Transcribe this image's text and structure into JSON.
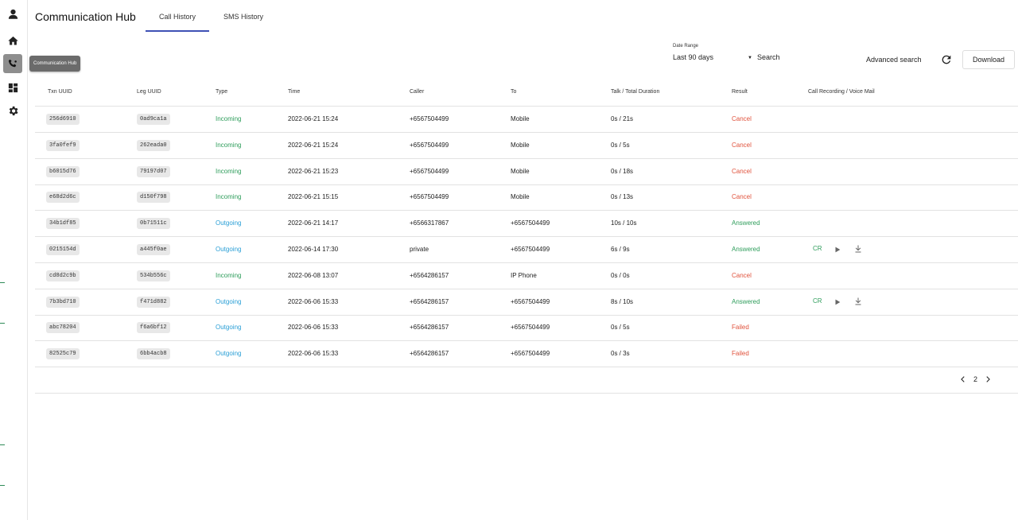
{
  "app": {
    "title": "Communication Hub"
  },
  "tabs": [
    {
      "label": "Call History",
      "active": true
    },
    {
      "label": "SMS History",
      "active": false
    }
  ],
  "sidebar": {
    "tooltip": "Communication Hub",
    "icons": [
      "person-icon",
      "home-icon",
      "communication-hub-icon",
      "dashboard-icon",
      "settings-icon"
    ]
  },
  "filters": {
    "date_range_label": "Date Range",
    "date_range_value": "Last 90 days",
    "search_label": "Search",
    "advanced_search_label": "Advanced search",
    "download_label": "Download"
  },
  "table": {
    "headers": [
      "Txn UUID",
      "Leg UUID",
      "Type",
      "Time",
      "Caller",
      "To",
      "Talk / Total Duration",
      "Result",
      "Call Recording / Voice Mail"
    ],
    "rows": [
      {
        "txn": "256d6910",
        "leg": "0ad9ca1a",
        "type": "Incoming",
        "time": "2022-06-21 15:24",
        "caller": "+6567504499",
        "to": "Mobile",
        "duration": "0s / 21s",
        "result": "Cancel",
        "cr": false
      },
      {
        "txn": "3fa0fef9",
        "leg": "262eada0",
        "type": "Incoming",
        "time": "2022-06-21 15:24",
        "caller": "+6567504499",
        "to": "Mobile",
        "duration": "0s / 5s",
        "result": "Cancel",
        "cr": false
      },
      {
        "txn": "b6015d76",
        "leg": "79197d07",
        "type": "Incoming",
        "time": "2022-06-21 15:23",
        "caller": "+6567504499",
        "to": "Mobile",
        "duration": "0s / 18s",
        "result": "Cancel",
        "cr": false
      },
      {
        "txn": "e68d2d6c",
        "leg": "d150f798",
        "type": "Incoming",
        "time": "2022-06-21 15:15",
        "caller": "+6567504499",
        "to": "Mobile",
        "duration": "0s / 13s",
        "result": "Cancel",
        "cr": false
      },
      {
        "txn": "34b1df85",
        "leg": "0b71511c",
        "type": "Outgoing",
        "time": "2022-06-21 14:17",
        "caller": "+6566317867",
        "to": "+6567504499",
        "duration": "10s / 10s",
        "result": "Answered",
        "cr": false
      },
      {
        "txn": "0215154d",
        "leg": "a445f0ae",
        "type": "Outgoing",
        "time": "2022-06-14 17:30",
        "caller": "private",
        "to": "+6567504499",
        "duration": "6s / 9s",
        "result": "Answered",
        "cr": true
      },
      {
        "txn": "cd8d2c9b",
        "leg": "534b556c",
        "type": "Incoming",
        "time": "2022-06-08 13:07",
        "caller": "+6564286157",
        "to": "IP Phone",
        "duration": "0s / 0s",
        "result": "Cancel",
        "cr": false
      },
      {
        "txn": "7b3bd710",
        "leg": "f471d882",
        "type": "Outgoing",
        "time": "2022-06-06 15:33",
        "caller": "+6564286157",
        "to": "+6567504499",
        "duration": "8s / 10s",
        "result": "Answered",
        "cr": true
      },
      {
        "txn": "abc78204",
        "leg": "f6a6bf12",
        "type": "Outgoing",
        "time": "2022-06-06 15:33",
        "caller": "+6564286157",
        "to": "+6567504499",
        "duration": "0s / 5s",
        "result": "Failed",
        "cr": false
      },
      {
        "txn": "82525c79",
        "leg": "6bb4acb8",
        "type": "Outgoing",
        "time": "2022-06-06 15:33",
        "caller": "+6564286157",
        "to": "+6567504499",
        "duration": "0s / 3s",
        "result": "Failed",
        "cr": false
      }
    ],
    "cr_label": "CR"
  },
  "pagination": {
    "current_page": "2"
  },
  "colors": {
    "incoming": "#2e9d5b",
    "outgoing": "#2a9fd6",
    "cancel": "#e0523c",
    "failed": "#e0523c",
    "answered": "#2e9d5b",
    "accent": "#3f51b5"
  }
}
